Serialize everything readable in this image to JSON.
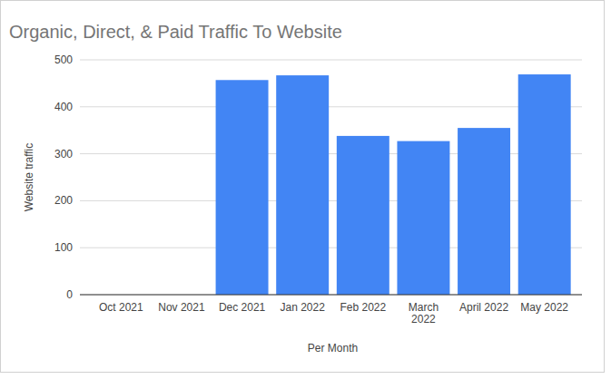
{
  "chart_data": {
    "type": "bar",
    "title": "Organic, Direct, & Paid Traffic To Website",
    "xlabel": "Per Month",
    "ylabel": "Website traffic",
    "categories": [
      "Oct 2021",
      "Nov 2021",
      "Dec 2021",
      "Jan 2022",
      "Feb 2022",
      "March 2022",
      "April 2022",
      "May 2022"
    ],
    "values": [
      0,
      0,
      457,
      467,
      338,
      327,
      355,
      469
    ],
    "color": "#4285f4",
    "ylim": [
      0,
      500
    ],
    "yticks": [
      0,
      100,
      200,
      300,
      400,
      500
    ],
    "grid": true
  }
}
